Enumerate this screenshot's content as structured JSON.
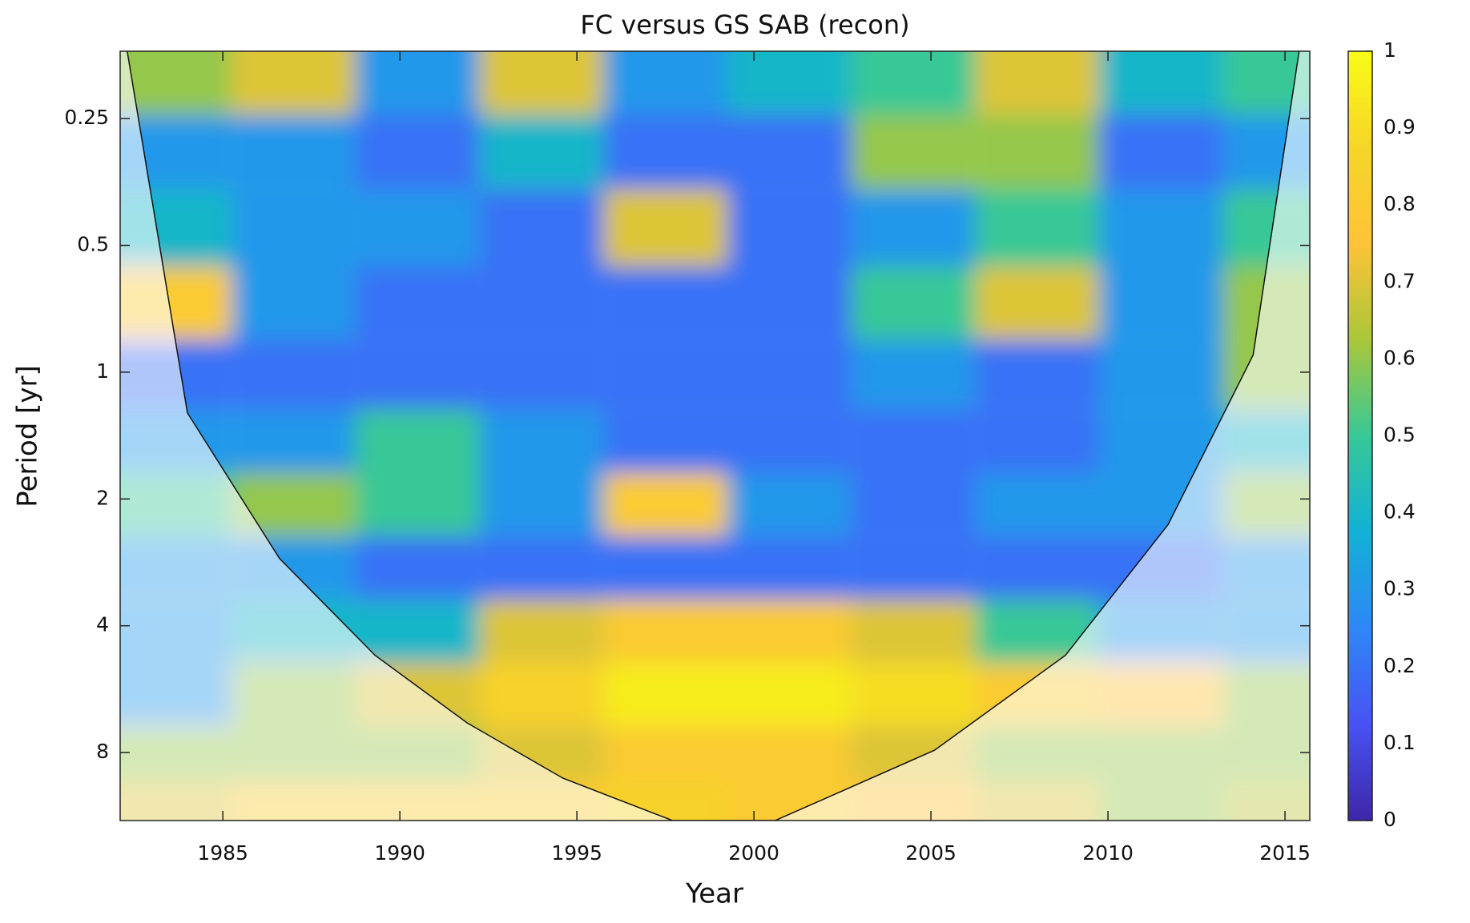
{
  "chart_data": {
    "type": "heatmap",
    "title": "FC versus GS SAB (recon)",
    "x_label": "Year",
    "y_label": "Period [yr]",
    "colormap": "parula",
    "xlim": [
      1982.1,
      2015.7
    ],
    "xticks": [
      1985,
      1990,
      1995,
      2000,
      2005,
      2010,
      2015
    ],
    "ylim": [
      0.173,
      11.6
    ],
    "y_scale": "log2",
    "y_reversed": true,
    "yticks": [
      0.25,
      0.5,
      1,
      2,
      4,
      8
    ],
    "x": [
      1983.5,
      1987,
      1990.5,
      1994,
      1997.5,
      2001,
      2004.5,
      2008,
      2011.5,
      2015
    ],
    "periods": [
      0.2,
      0.3,
      0.45,
      0.7,
      1,
      1.5,
      2,
      3,
      4,
      6,
      8,
      11
    ],
    "z": [
      [
        0.6,
        0.7,
        0.3,
        0.7,
        0.3,
        0.4,
        0.5,
        0.7,
        0.4,
        0.5
      ],
      [
        0.3,
        0.3,
        0.2,
        0.4,
        0.2,
        0.2,
        0.6,
        0.6,
        0.2,
        0.3
      ],
      [
        0.4,
        0.3,
        0.3,
        0.2,
        0.7,
        0.2,
        0.3,
        0.5,
        0.3,
        0.5
      ],
      [
        0.8,
        0.3,
        0.2,
        0.2,
        0.2,
        0.2,
        0.5,
        0.7,
        0.3,
        0.6
      ],
      [
        0.2,
        0.2,
        0.2,
        0.2,
        0.2,
        0.2,
        0.3,
        0.2,
        0.3,
        0.6
      ],
      [
        0.3,
        0.3,
        0.5,
        0.3,
        0.2,
        0.2,
        0.2,
        0.2,
        0.3,
        0.4
      ],
      [
        0.5,
        0.6,
        0.5,
        0.3,
        0.8,
        0.3,
        0.2,
        0.3,
        0.3,
        0.6
      ],
      [
        0.3,
        0.3,
        0.2,
        0.2,
        0.2,
        0.2,
        0.2,
        0.2,
        0.2,
        0.3
      ],
      [
        0.3,
        0.4,
        0.4,
        0.7,
        0.8,
        0.8,
        0.7,
        0.5,
        0.3,
        0.3
      ],
      [
        0.3,
        0.6,
        0.7,
        0.85,
        0.95,
        0.95,
        0.9,
        0.8,
        0.75,
        0.6
      ],
      [
        0.6,
        0.6,
        0.6,
        0.7,
        0.8,
        0.8,
        0.7,
        0.6,
        0.6,
        0.6
      ],
      [
        0.7,
        0.8,
        0.8,
        0.8,
        0.85,
        0.8,
        0.75,
        0.7,
        0.6,
        0.65
      ]
    ],
    "coi": {
      "x": [
        1982.3,
        1984.0,
        1986.6,
        1989.3,
        1991.9,
        1994.6,
        1997.7,
        2000.6,
        2005.1,
        2008.8,
        2011.7,
        2014.1,
        2015.4
      ],
      "period": [
        0.173,
        1.25,
        2.77,
        4.7,
        6.8,
        9.2,
        11.6,
        11.6,
        7.9,
        4.7,
        2.3,
        0.91,
        0.173
      ]
    },
    "colorbar": {
      "lim": [
        0,
        1
      ],
      "ticks": [
        0,
        0.1,
        0.2,
        0.3,
        0.4,
        0.5,
        0.6,
        0.7,
        0.8,
        0.9,
        1
      ]
    }
  }
}
